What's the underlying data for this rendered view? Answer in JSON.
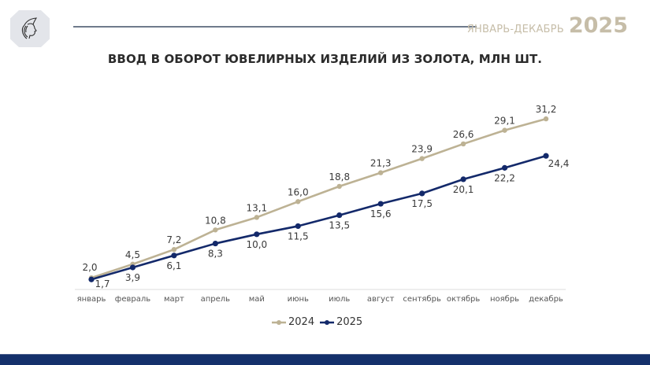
{
  "header": {
    "period_range": "ЯНВАРЬ-ДЕКАБРЬ",
    "period_year": "2025",
    "logo_icon": "hermes-head-logo-icon"
  },
  "title": "ВВОД В ОБОРОТ ЮВЕЛИРНЫХ ИЗДЕЛИЙ ИЗ ЗОЛОТА, МЛН ШТ.",
  "colors": {
    "series_2024": "#bdb294",
    "series_2025": "#13296a",
    "period_text": "#c6bda8",
    "footer_bar": "#14306b"
  },
  "legend": [
    {
      "label": "2024",
      "color": "#bdb294"
    },
    {
      "label": "2025",
      "color": "#13296a"
    }
  ],
  "chart_data": {
    "type": "line",
    "title": "ВВОД В ОБОРОТ ЮВЕЛИРНЫХ ИЗДЕЛИЙ ИЗ ЗОЛОТА, МЛН ШТ.",
    "xlabel": "",
    "ylabel": "",
    "categories": [
      "январь",
      "февраль",
      "март",
      "апрель",
      "май",
      "июнь",
      "июль",
      "август",
      "сентябрь",
      "октябрь",
      "ноябрь",
      "декабрь"
    ],
    "series": [
      {
        "name": "2024",
        "color": "#bdb294",
        "values": [
          2.0,
          4.5,
          7.2,
          10.8,
          13.1,
          16.0,
          18.8,
          21.3,
          23.9,
          26.6,
          29.1,
          31.2
        ],
        "labels": [
          "2,0",
          "4,5",
          "7,2",
          "10,8",
          "13,1",
          "16,0",
          "18,8",
          "21,3",
          "23,9",
          "26,6",
          "29,1",
          "31,2"
        ]
      },
      {
        "name": "2025",
        "color": "#13296a",
        "values": [
          1.7,
          3.9,
          6.1,
          8.3,
          10.0,
          11.5,
          13.5,
          15.6,
          17.5,
          20.1,
          22.2,
          24.4
        ],
        "labels": [
          "1,7",
          "3,9",
          "6,1",
          "8,3",
          "10,0",
          "11,5",
          "13,5",
          "15,6",
          "17,5",
          "20,1",
          "22,2",
          "24,4"
        ]
      }
    ],
    "ylim": [
      0,
      32
    ],
    "grid": false,
    "legend_position": "bottom",
    "data_labels": true
  }
}
